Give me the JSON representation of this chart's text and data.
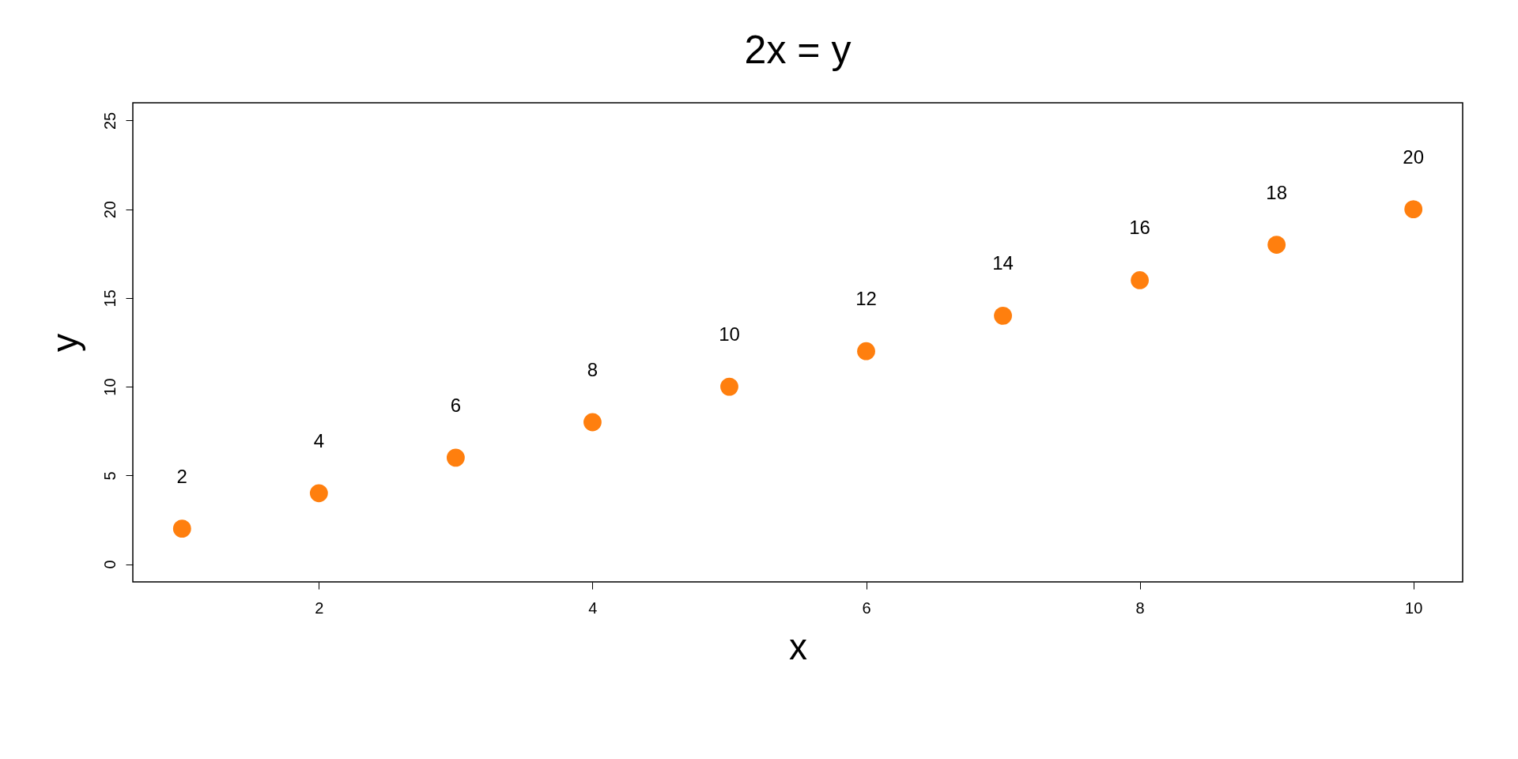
{
  "chart_data": {
    "type": "scatter",
    "title": "2x = y",
    "xlabel": "x",
    "ylabel": "y",
    "x": [
      1,
      2,
      3,
      4,
      5,
      6,
      7,
      8,
      9,
      10
    ],
    "values": [
      2,
      4,
      6,
      8,
      10,
      12,
      14,
      16,
      18,
      20
    ],
    "color": "#ff7f0e",
    "xlim": [
      0.64,
      10.36
    ],
    "ylim": [
      -1,
      26
    ],
    "xticks": [
      2,
      4,
      6,
      8,
      10
    ],
    "yticks": [
      0,
      5,
      10,
      15,
      20,
      25
    ],
    "data_labels": true,
    "grid": false,
    "marker": "circle"
  }
}
